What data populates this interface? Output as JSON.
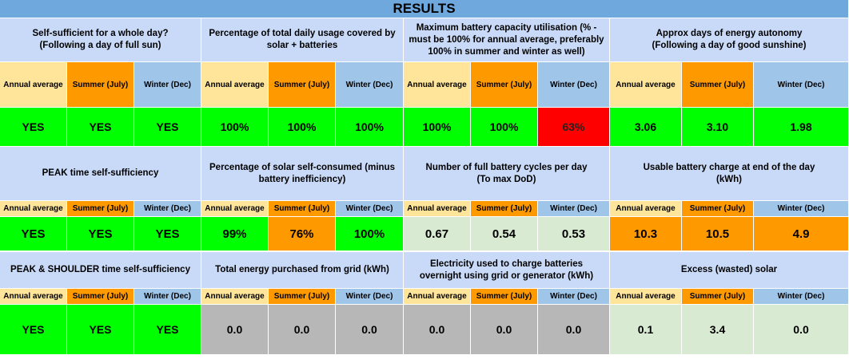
{
  "title": "RESULTS",
  "colors": {
    "title_bg": "#6fa8dc",
    "header_bg": "#c9daf8",
    "annual_bg": "#ffe599",
    "summer_bg": "#ff9900",
    "winter_bg": "#9fc5e8",
    "green": "#00ff00",
    "red": "#ff0000",
    "orange": "#ff9900",
    "light_green": "#d9ead3",
    "grey": "#b7b7b7"
  },
  "periods": {
    "annual": "Annual average",
    "summer": "Summer (July)",
    "winter": "Winter (Dec)"
  },
  "rows": [
    {
      "blocks": [
        {
          "header": "Self-sufficient for a whole day?\n(Following a day of full sun)",
          "values": [
            "YES",
            "YES",
            "YES"
          ],
          "value_colors": [
            "green",
            "green",
            "green"
          ]
        },
        {
          "header": "Percentage of total daily usage covered by solar + batteries",
          "values": [
            "100%",
            "100%",
            "100%"
          ],
          "value_colors": [
            "green",
            "green",
            "green"
          ]
        },
        {
          "header": "Maximum battery capacity utilisation (% - must be 100% for annual average, preferably 100% in summer and winter as well)",
          "values": [
            "100%",
            "100%",
            "63%"
          ],
          "value_colors": [
            "green",
            "green",
            "red"
          ]
        },
        {
          "header": "Approx days of energy autonomy\n(Following a day of good sunshine)",
          "values": [
            "3.06",
            "3.10",
            "1.98"
          ],
          "value_colors": [
            "green",
            "green",
            "green"
          ]
        }
      ]
    },
    {
      "blocks": [
        {
          "header": "PEAK time self-sufficiency",
          "values": [
            "YES",
            "YES",
            "YES"
          ],
          "value_colors": [
            "green",
            "green",
            "green"
          ]
        },
        {
          "header": "Percentage of solar self-consumed (minus battery inefficiency)",
          "values": [
            "99%",
            "76%",
            "100%"
          ],
          "value_colors": [
            "green",
            "orange",
            "green"
          ]
        },
        {
          "header": "Number of full battery cycles per day\n(To max DoD)",
          "values": [
            "0.67",
            "0.54",
            "0.53"
          ],
          "value_colors": [
            "light_green",
            "light_green",
            "light_green"
          ]
        },
        {
          "header": "Usable battery charge at end of the day\n(kWh)",
          "values": [
            "10.3",
            "10.5",
            "4.9"
          ],
          "value_colors": [
            "orange",
            "orange",
            "orange"
          ]
        }
      ]
    },
    {
      "blocks": [
        {
          "header": "PEAK & SHOULDER time self-sufficiency",
          "values": [
            "YES",
            "YES",
            "YES"
          ],
          "value_colors": [
            "green",
            "green",
            "green"
          ]
        },
        {
          "header": "Total energy purchased from grid (kWh)",
          "values": [
            "0.0",
            "0.0",
            "0.0"
          ],
          "value_colors": [
            "grey",
            "grey",
            "grey"
          ]
        },
        {
          "header": "Electricity used to charge batteries overnight using grid or generator (kWh)",
          "values": [
            "0.0",
            "0.0",
            "0.0"
          ],
          "value_colors": [
            "grey",
            "grey",
            "grey"
          ]
        },
        {
          "header": "Excess (wasted) solar",
          "values": [
            "0.1",
            "3.4",
            "0.0"
          ],
          "value_colors": [
            "light_green",
            "light_green",
            "light_green"
          ]
        }
      ]
    }
  ]
}
